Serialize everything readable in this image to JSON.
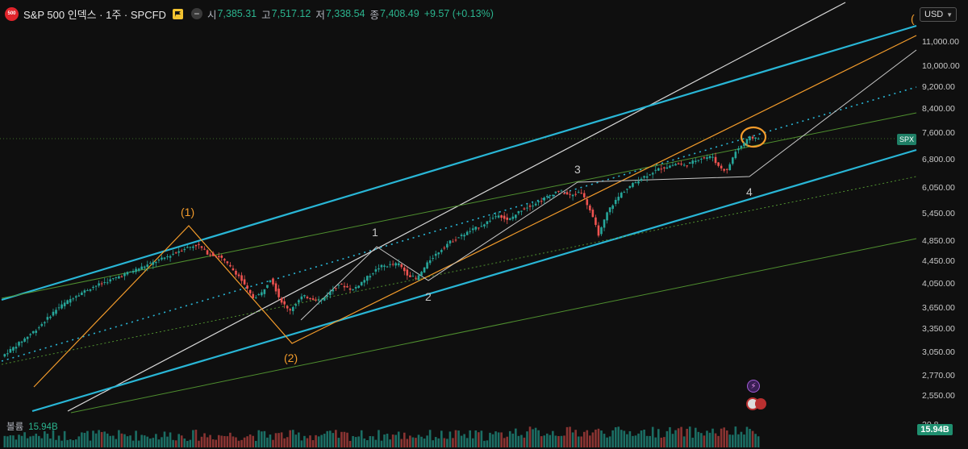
{
  "header": {
    "logo_text": "500",
    "title": "S&P 500 인덱스 · 1주 · SPCFD",
    "ohlc": [
      {
        "label": "시",
        "value": "7,385.31"
      },
      {
        "label": "고",
        "value": "7,517.12"
      },
      {
        "label": "저",
        "value": "7,338.54"
      },
      {
        "label": "종",
        "value": "7,408.49"
      }
    ],
    "change": "+9.57 (+0.13%)"
  },
  "currency": "USD",
  "price_axis": {
    "labels": [
      "11,000.00",
      "10,000.00",
      "9,200.00",
      "8,400.00",
      "7,600.00",
      "6,800.00",
      "6,050.00",
      "5,450.00",
      "4,850.00",
      "4,450.00",
      "4,050.00",
      "3,650.00",
      "3,350.00",
      "3,050.00",
      "2,770.00",
      "2,550.00",
      "20.8"
    ]
  },
  "spx_badge": "SPX",
  "volume": {
    "label": "볼륨",
    "value": "15.94B",
    "badge": "15.94B"
  },
  "wave_labels": [
    "(1)",
    "(2)",
    "1",
    "2",
    "3",
    "4",
    "("
  ],
  "colors": {
    "background": "#0f0f0f",
    "up": "#26a69a",
    "down": "#ef5350",
    "channel_blue": "#29b6d6",
    "orange": "#f29b2b",
    "green_line": "#4f8f2f",
    "white_line": "#d8d8d8"
  },
  "chart_data": {
    "type": "candlestick",
    "timeframe": "1주",
    "symbol": "SPCFD",
    "last_close": 7408.49,
    "y_scale": "log",
    "ylim": [
      2450,
      11800
    ],
    "path_points": [
      [
        0,
        3000
      ],
      [
        0.02,
        3180
      ],
      [
        0.04,
        3380
      ],
      [
        0.06,
        3650
      ],
      [
        0.08,
        3850
      ],
      [
        0.1,
        4000
      ],
      [
        0.12,
        4120
      ],
      [
        0.14,
        4250
      ],
      [
        0.16,
        4380
      ],
      [
        0.18,
        4520
      ],
      [
        0.2,
        4690
      ],
      [
        0.215,
        4760
      ],
      [
        0.225,
        4600
      ],
      [
        0.24,
        4520
      ],
      [
        0.26,
        4180
      ],
      [
        0.275,
        3820
      ],
      [
        0.285,
        3900
      ],
      [
        0.295,
        4150
      ],
      [
        0.305,
        3800
      ],
      [
        0.315,
        3620
      ],
      [
        0.33,
        3850
      ],
      [
        0.35,
        3780
      ],
      [
        0.37,
        4050
      ],
      [
        0.385,
        3950
      ],
      [
        0.4,
        4150
      ],
      [
        0.415,
        4350
      ],
      [
        0.435,
        4400
      ],
      [
        0.445,
        4210
      ],
      [
        0.455,
        4130
      ],
      [
        0.47,
        4480
      ],
      [
        0.49,
        4800
      ],
      [
        0.51,
        5000
      ],
      [
        0.53,
        5200
      ],
      [
        0.545,
        5400
      ],
      [
        0.555,
        5250
      ],
      [
        0.57,
        5500
      ],
      [
        0.59,
        5700
      ],
      [
        0.61,
        5950
      ],
      [
        0.625,
        5820
      ],
      [
        0.635,
        5950
      ],
      [
        0.645,
        5500
      ],
      [
        0.655,
        4950
      ],
      [
        0.665,
        5480
      ],
      [
        0.68,
        5900
      ],
      [
        0.7,
        6250
      ],
      [
        0.72,
        6500
      ],
      [
        0.74,
        6650
      ],
      [
        0.75,
        6600
      ],
      [
        0.765,
        6800
      ],
      [
        0.78,
        6850
      ],
      [
        0.785,
        6600
      ],
      [
        0.795,
        6450
      ],
      [
        0.805,
        7000
      ],
      [
        0.82,
        7400
      ],
      [
        0.83,
        7408.49
      ]
    ]
  }
}
